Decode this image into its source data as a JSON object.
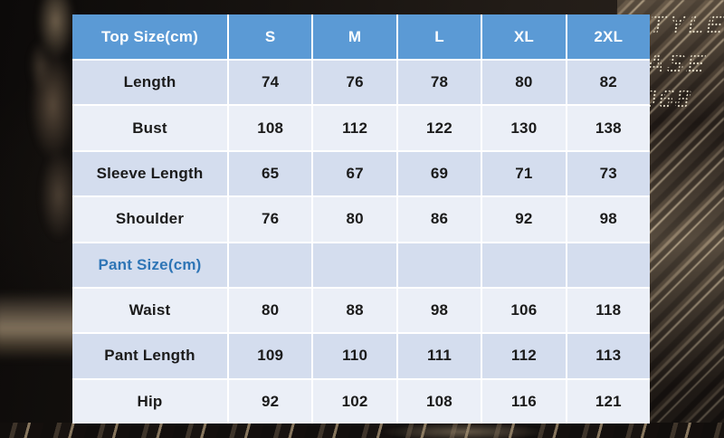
{
  "chart_data": {
    "type": "table",
    "columns": [
      "Top Size(cm)",
      "S",
      "M",
      "L",
      "XL",
      "2XL"
    ],
    "rows": [
      {
        "label": "Length",
        "values": [
          "74",
          "76",
          "78",
          "80",
          "82"
        ]
      },
      {
        "label": "Bust",
        "values": [
          "108",
          "112",
          "122",
          "130",
          "138"
        ]
      },
      {
        "label": "Sleeve Length",
        "values": [
          "65",
          "67",
          "69",
          "71",
          "73"
        ]
      },
      {
        "label": "Shoulder",
        "values": [
          "76",
          "80",
          "86",
          "92",
          "98"
        ]
      },
      {
        "label": "Pant Size(cm)",
        "values": [
          "",
          "",
          "",
          "",
          ""
        ],
        "section_header": true
      },
      {
        "label": "Waist",
        "values": [
          "80",
          "88",
          "98",
          "106",
          "118"
        ]
      },
      {
        "label": "Pant Length",
        "values": [
          "109",
          "110",
          "111",
          "112",
          "113"
        ]
      },
      {
        "label": "Hip",
        "values": [
          "92",
          "102",
          "108",
          "116",
          "121"
        ]
      }
    ]
  },
  "watermark": {
    "lines": [
      "TYLE",
      "ASE",
      "068"
    ]
  },
  "colors": {
    "header_bg": "#5b9ad5",
    "header_text": "#ffffff",
    "band_blue": "#d4ddee",
    "band_white": "#ebeff7",
    "section_label": "#2e75b6",
    "cell_text": "#1b1b1b",
    "grid_line": "#ffffff"
  }
}
